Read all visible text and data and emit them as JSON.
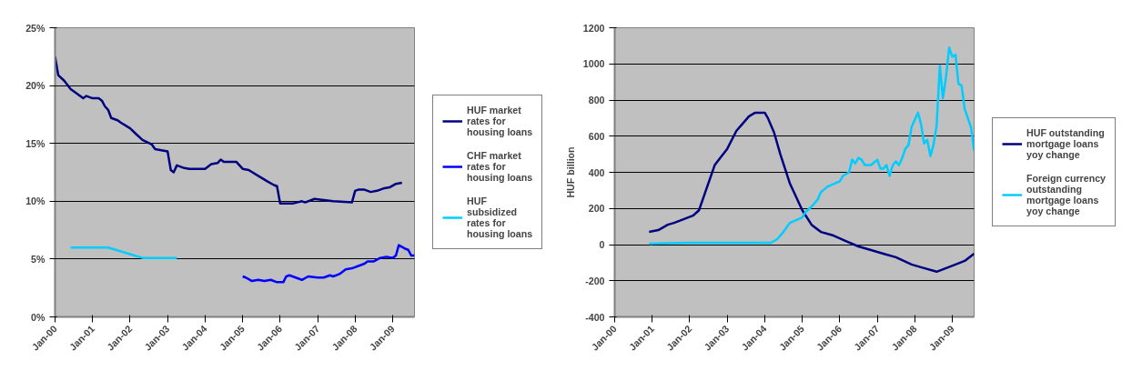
{
  "chart_data": [
    {
      "type": "line",
      "xlim": [
        "2000-01",
        "2009-08"
      ],
      "ylim": [
        0,
        25
      ],
      "xticks": [
        {
          "value": "2000-01",
          "label": "Jan-00"
        },
        {
          "value": "2001-01",
          "label": "Jan-01"
        },
        {
          "value": "2002-01",
          "label": "Jan-02"
        },
        {
          "value": "2003-01",
          "label": "Jan-03"
        },
        {
          "value": "2004-01",
          "label": "Jan-04"
        },
        {
          "value": "2005-01",
          "label": "Jan-05"
        },
        {
          "value": "2006-01",
          "label": "Jan-06"
        },
        {
          "value": "2007-01",
          "label": "Jan-07"
        },
        {
          "value": "2008-01",
          "label": "Jan-08"
        },
        {
          "value": "2009-01",
          "label": "Jan-09"
        }
      ],
      "yticks": [
        {
          "value": 0,
          "label": "0%"
        },
        {
          "value": 5,
          "label": "5%"
        },
        {
          "value": 10,
          "label": "10%"
        },
        {
          "value": 15,
          "label": "15%"
        },
        {
          "value": 20,
          "label": "20%"
        },
        {
          "value": 25,
          "label": "25%"
        }
      ],
      "grid": "y",
      "legend": "right",
      "series": [
        {
          "name": "HUF market rates for housing loans",
          "color": "#000080",
          "x": [
            "2000-01",
            "2000-02",
            "2000-04",
            "2000-06",
            "2000-09",
            "2000-10",
            "2000-11",
            "2001-01",
            "2001-03",
            "2001-04",
            "2001-05",
            "2001-06",
            "2001-07",
            "2001-09",
            "2001-10",
            "2002-01",
            "2002-03",
            "2002-05",
            "2002-08",
            "2002-09",
            "2002-11",
            "2003-01",
            "2003-02",
            "2003-03",
            "2003-04",
            "2003-05",
            "2003-06",
            "2003-08",
            "2003-09",
            "2004-01",
            "2004-03",
            "2004-05",
            "2004-06",
            "2004-07",
            "2004-09",
            "2004-11",
            "2005-01",
            "2005-03",
            "2005-06",
            "2005-09",
            "2005-11",
            "2005-12",
            "2006-01",
            "2006-03",
            "2006-05",
            "2006-08",
            "2006-09",
            "2006-12",
            "2007-03",
            "2007-06",
            "2007-12",
            "2008-01",
            "2008-02",
            "2008-04",
            "2008-06",
            "2008-08",
            "2008-10",
            "2008-12",
            "2009-02",
            "2009-04"
          ],
          "values": [
            22.5,
            20.9,
            20.4,
            19.7,
            19.1,
            18.9,
            19.1,
            18.9,
            18.9,
            18.7,
            18.2,
            17.9,
            17.2,
            17.0,
            16.8,
            16.3,
            15.8,
            15.3,
            14.9,
            14.5,
            14.4,
            14.3,
            12.7,
            12.5,
            13.1,
            13.0,
            12.9,
            12.8,
            12.8,
            12.8,
            13.2,
            13.3,
            13.6,
            13.4,
            13.4,
            13.4,
            12.8,
            12.7,
            12.2,
            11.7,
            11.4,
            11.3,
            9.8,
            9.8,
            9.8,
            10.0,
            9.9,
            10.2,
            10.1,
            10.0,
            9.9,
            10.9,
            11.0,
            11.0,
            10.8,
            10.9,
            11.1,
            11.2,
            11.5,
            11.6
          ]
        },
        {
          "name": "CHF market rates for housing loans",
          "color": "#0000ff",
          "x": [
            "2005-01",
            "2005-02",
            "2005-04",
            "2005-06",
            "2005-08",
            "2005-10",
            "2005-12",
            "2006-02",
            "2006-03",
            "2006-04",
            "2006-06",
            "2006-08",
            "2006-10",
            "2007-01",
            "2007-03",
            "2007-05",
            "2007-06",
            "2007-08",
            "2007-10",
            "2007-12",
            "2008-02",
            "2008-04",
            "2008-05",
            "2008-07",
            "2008-09",
            "2008-11",
            "2009-01",
            "2009-02",
            "2009-03",
            "2009-05",
            "2009-06",
            "2009-07",
            "2009-08"
          ],
          "values": [
            3.5,
            3.4,
            3.1,
            3.2,
            3.1,
            3.2,
            3.0,
            3.0,
            3.5,
            3.6,
            3.4,
            3.2,
            3.5,
            3.4,
            3.4,
            3.6,
            3.5,
            3.7,
            4.1,
            4.2,
            4.4,
            4.6,
            4.8,
            4.8,
            5.1,
            5.2,
            5.1,
            5.3,
            6.2,
            5.9,
            5.8,
            5.3,
            5.3
          ]
        },
        {
          "name": "HUF subsidized rates for housing loans",
          "color": "#00ccff",
          "x": [
            "2000-06",
            "2001-06",
            "2002-05",
            "2003-04"
          ],
          "values": [
            6.0,
            6.0,
            5.1,
            5.1
          ]
        }
      ]
    },
    {
      "type": "line",
      "xlim": [
        "2000-01",
        "2009-08"
      ],
      "ylim": [
        -400,
        1200
      ],
      "ylabel": "HUF billion",
      "xticks": [
        {
          "value": "2000-01",
          "label": "Jan-00"
        },
        {
          "value": "2001-01",
          "label": "Jan-01"
        },
        {
          "value": "2002-01",
          "label": "Jan-02"
        },
        {
          "value": "2003-01",
          "label": "Jan-03"
        },
        {
          "value": "2004-01",
          "label": "Jan-04"
        },
        {
          "value": "2005-01",
          "label": "Jan-05"
        },
        {
          "value": "2006-01",
          "label": "Jan-06"
        },
        {
          "value": "2007-01",
          "label": "Jan-07"
        },
        {
          "value": "2008-01",
          "label": "Jan-08"
        },
        {
          "value": "2009-01",
          "label": "Jan-09"
        }
      ],
      "yticks": [
        -400,
        -200,
        0,
        200,
        400,
        600,
        800,
        1000,
        1200
      ],
      "grid": "y",
      "legend": "right",
      "series": [
        {
          "name": "HUF outstanding mortgage loans yoy change",
          "color": "#000080",
          "x": [
            "2000-12",
            "2001-03",
            "2001-06",
            "2001-08",
            "2001-11",
            "2002-02",
            "2002-04",
            "2002-06",
            "2002-09",
            "2003-01",
            "2003-04",
            "2003-06",
            "2003-08",
            "2003-10",
            "2004-01",
            "2004-02",
            "2004-04",
            "2004-06",
            "2004-09",
            "2005-01",
            "2005-04",
            "2005-07",
            "2005-11",
            "2006-03",
            "2006-07",
            "2006-11",
            "2007-03",
            "2007-07",
            "2007-12",
            "2008-04",
            "2008-08",
            "2008-11",
            "2009-02",
            "2009-05",
            "2009-08"
          ],
          "values": [
            70,
            80,
            110,
            120,
            140,
            160,
            190,
            290,
            440,
            530,
            630,
            670,
            710,
            730,
            730,
            700,
            620,
            500,
            340,
            190,
            110,
            70,
            50,
            20,
            -10,
            -30,
            -50,
            -70,
            -110,
            -130,
            -150,
            -130,
            -110,
            -90,
            -50
          ]
        },
        {
          "name": "Foreign currency outstanding mortgage loans yoy change",
          "color": "#00ccff",
          "x": [
            "2000-12",
            "2002-01",
            "2003-01",
            "2004-01",
            "2004-03",
            "2004-05",
            "2004-07",
            "2004-09",
            "2005-01",
            "2005-02",
            "2005-04",
            "2005-06",
            "2005-07",
            "2005-09",
            "2006-01",
            "2006-02",
            "2006-03",
            "2006-04",
            "2006-05",
            "2006-06",
            "2006-07",
            "2006-08",
            "2006-09",
            "2006-11",
            "2007-01",
            "2007-02",
            "2007-03",
            "2007-04",
            "2007-05",
            "2007-06",
            "2007-07",
            "2007-08",
            "2007-09",
            "2007-10",
            "2007-11",
            "2007-12",
            "2008-02",
            "2008-03",
            "2008-04",
            "2008-05",
            "2008-06",
            "2008-07",
            "2008-08",
            "2008-09",
            "2008-10",
            "2008-11",
            "2008-12",
            "2009-01",
            "2009-02",
            "2009-03",
            "2009-04",
            "2009-05",
            "2009-06",
            "2009-07",
            "2009-08"
          ],
          "values": [
            5,
            10,
            10,
            10,
            10,
            30,
            70,
            120,
            150,
            180,
            210,
            250,
            290,
            320,
            350,
            380,
            390,
            400,
            470,
            450,
            480,
            470,
            440,
            440,
            470,
            420,
            420,
            440,
            380,
            440,
            460,
            440,
            480,
            530,
            550,
            650,
            730,
            670,
            560,
            580,
            490,
            550,
            660,
            990,
            810,
            930,
            1090,
            1040,
            1050,
            890,
            880,
            750,
            700,
            650,
            520
          ]
        }
      ]
    }
  ]
}
